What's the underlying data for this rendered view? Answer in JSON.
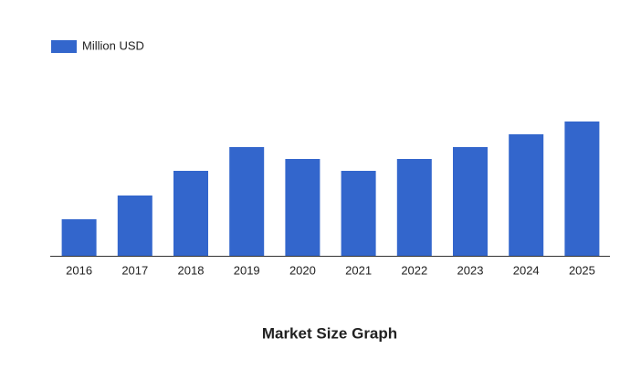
{
  "chart_data": {
    "type": "bar",
    "title": "Market Size Graph",
    "categories": [
      "2016",
      "2017",
      "2018",
      "2019",
      "2020",
      "2021",
      "2022",
      "2023",
      "2024",
      "2025"
    ],
    "series": [
      {
        "name": "Million USD",
        "color": "#3366cc",
        "values": [
          40,
          66,
          93,
          119,
          106,
          93,
          106,
          119,
          133,
          147
        ]
      }
    ]
  }
}
